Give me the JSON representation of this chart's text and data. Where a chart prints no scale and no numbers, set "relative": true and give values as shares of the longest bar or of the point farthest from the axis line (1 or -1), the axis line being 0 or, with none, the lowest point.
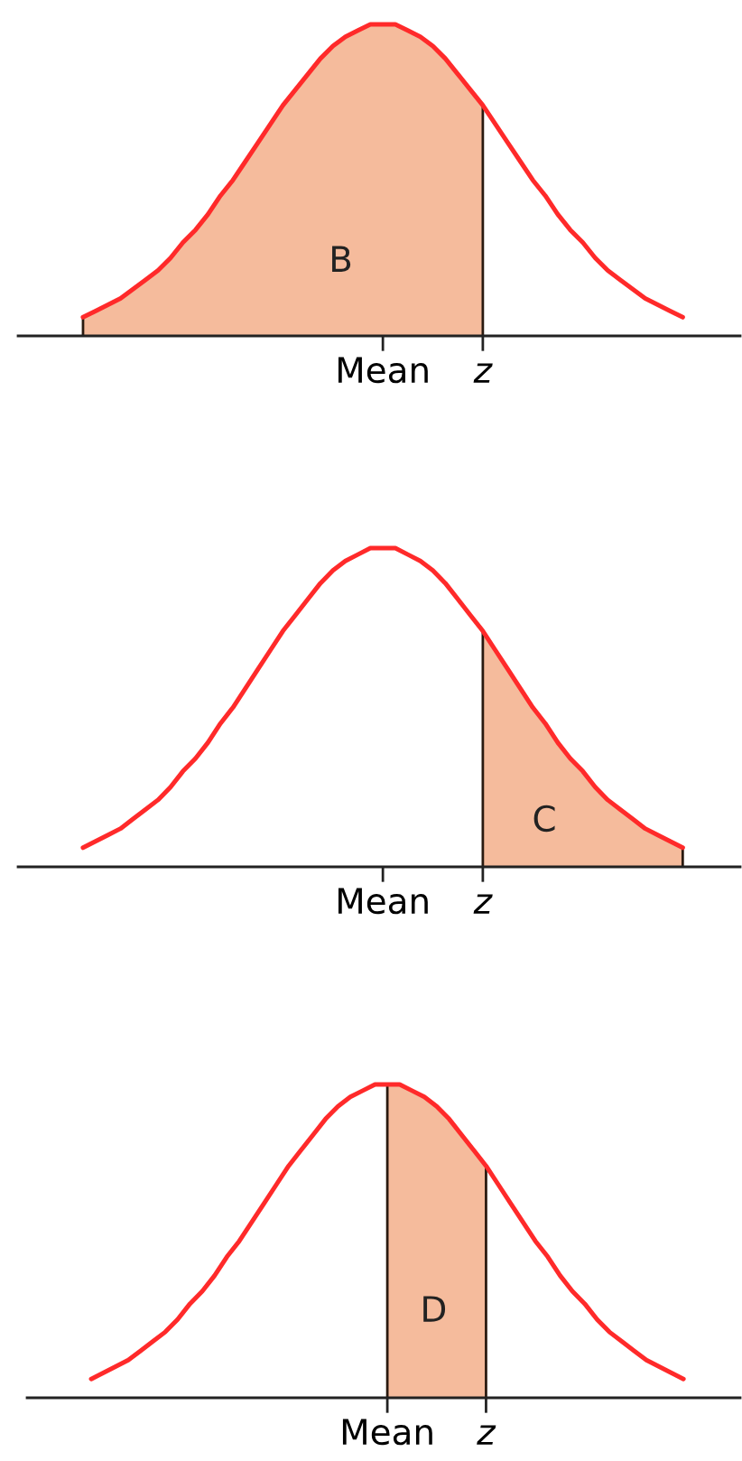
{
  "chart_data": [
    {
      "type": "line",
      "relative": true,
      "categories": [
        null,
        null,
        null,
        null,
        null,
        null,
        null,
        null,
        null,
        null,
        null,
        null,
        null,
        null,
        null,
        null,
        null,
        null,
        null,
        null,
        null,
        null,
        null,
        null,
        "Mean",
        null,
        null,
        null,
        null,
        null,
        null,
        null,
        "z",
        null,
        null,
        null,
        null,
        null,
        null,
        null,
        null,
        null,
        null,
        null,
        null,
        null,
        null,
        null,
        null
      ],
      "series": [
        {
          "type": "area",
          "color": "#f5bb9c",
          "values": [
            0.06,
            0.08,
            0.1,
            0.12,
            0.15,
            0.18,
            0.21,
            0.25,
            0.3,
            0.34,
            0.39,
            0.45,
            0.5,
            0.56,
            0.62,
            0.68,
            0.74,
            0.79,
            0.84,
            0.89,
            0.93,
            0.96,
            0.98,
            1.0,
            1.0,
            1.0,
            0.98,
            0.96,
            0.93,
            0.89,
            0.84,
            0.79,
            0.74,
            null,
            null,
            null,
            null,
            null,
            null,
            null,
            null,
            null,
            null,
            null,
            null,
            null,
            null,
            null,
            null
          ]
        },
        {
          "type": "line",
          "color": "#ff2a2a",
          "values": [
            0.06,
            0.08,
            0.1,
            0.12,
            0.15,
            0.18,
            0.21,
            0.25,
            0.3,
            0.34,
            0.39,
            0.45,
            0.5,
            0.56,
            0.62,
            0.68,
            0.74,
            0.79,
            0.84,
            0.89,
            0.93,
            0.96,
            0.98,
            1.0,
            1.0,
            1.0,
            0.98,
            0.96,
            0.93,
            0.89,
            0.84,
            0.79,
            0.74,
            0.68,
            0.62,
            0.56,
            0.5,
            0.45,
            0.39,
            0.34,
            0.3,
            0.25,
            0.21,
            0.18,
            0.15,
            0.12,
            0.1,
            0.08,
            0.06
          ]
        }
      ],
      "annotations": [
        "B"
      ]
    },
    {
      "type": "line",
      "relative": true,
      "categories": [
        null,
        null,
        null,
        null,
        null,
        null,
        null,
        null,
        null,
        null,
        null,
        null,
        null,
        null,
        null,
        null,
        null,
        null,
        null,
        null,
        null,
        null,
        null,
        null,
        "Mean",
        null,
        null,
        null,
        null,
        null,
        null,
        null,
        "z",
        null,
        null,
        null,
        null,
        null,
        null,
        null,
        null,
        null,
        null,
        null,
        null,
        null,
        null,
        null,
        null
      ],
      "series": [
        {
          "type": "area",
          "color": "#f5bb9c",
          "values": [
            null,
            null,
            null,
            null,
            null,
            null,
            null,
            null,
            null,
            null,
            null,
            null,
            null,
            null,
            null,
            null,
            null,
            null,
            null,
            null,
            null,
            null,
            null,
            null,
            null,
            null,
            null,
            null,
            null,
            null,
            null,
            null,
            0.74,
            0.68,
            0.62,
            0.56,
            0.5,
            0.45,
            0.39,
            0.34,
            0.3,
            0.25,
            0.21,
            0.18,
            0.15,
            0.12,
            0.1,
            0.08,
            0.06
          ]
        },
        {
          "type": "line",
          "color": "#ff2a2a",
          "values": [
            0.06,
            0.08,
            0.1,
            0.12,
            0.15,
            0.18,
            0.21,
            0.25,
            0.3,
            0.34,
            0.39,
            0.45,
            0.5,
            0.56,
            0.62,
            0.68,
            0.74,
            0.79,
            0.84,
            0.89,
            0.93,
            0.96,
            0.98,
            1.0,
            1.0,
            1.0,
            0.98,
            0.96,
            0.93,
            0.89,
            0.84,
            0.79,
            0.74,
            0.68,
            0.62,
            0.56,
            0.5,
            0.45,
            0.39,
            0.34,
            0.3,
            0.25,
            0.21,
            0.18,
            0.15,
            0.12,
            0.1,
            0.08,
            0.06
          ]
        }
      ],
      "annotations": [
        "C"
      ]
    },
    {
      "type": "line",
      "relative": true,
      "categories": [
        null,
        null,
        null,
        null,
        null,
        null,
        null,
        null,
        null,
        null,
        null,
        null,
        null,
        null,
        null,
        null,
        null,
        null,
        null,
        null,
        null,
        null,
        null,
        null,
        "Mean",
        null,
        null,
        null,
        null,
        null,
        null,
        null,
        "z",
        null,
        null,
        null,
        null,
        null,
        null,
        null,
        null,
        null,
        null,
        null,
        null,
        null,
        null,
        null,
        null
      ],
      "series": [
        {
          "type": "area",
          "color": "#f5bb9c",
          "values": [
            null,
            null,
            null,
            null,
            null,
            null,
            null,
            null,
            null,
            null,
            null,
            null,
            null,
            null,
            null,
            null,
            null,
            null,
            null,
            null,
            null,
            null,
            null,
            null,
            1.0,
            1.0,
            0.98,
            0.96,
            0.93,
            0.89,
            0.84,
            0.79,
            0.74,
            null,
            null,
            null,
            null,
            null,
            null,
            null,
            null,
            null,
            null,
            null,
            null,
            null,
            null,
            null,
            null
          ]
        },
        {
          "type": "line",
          "color": "#ff2a2a",
          "values": [
            0.06,
            0.08,
            0.1,
            0.12,
            0.15,
            0.18,
            0.21,
            0.25,
            0.3,
            0.34,
            0.39,
            0.45,
            0.5,
            0.56,
            0.62,
            0.68,
            0.74,
            0.79,
            0.84,
            0.89,
            0.93,
            0.96,
            0.98,
            1.0,
            1.0,
            1.0,
            0.98,
            0.96,
            0.93,
            0.89,
            0.84,
            0.79,
            0.74,
            0.68,
            0.62,
            0.56,
            0.5,
            0.45,
            0.39,
            0.34,
            0.3,
            0.25,
            0.21,
            0.18,
            0.15,
            0.12,
            0.1,
            0.08,
            0.06
          ]
        }
      ],
      "annotations": [
        "D"
      ]
    }
  ]
}
